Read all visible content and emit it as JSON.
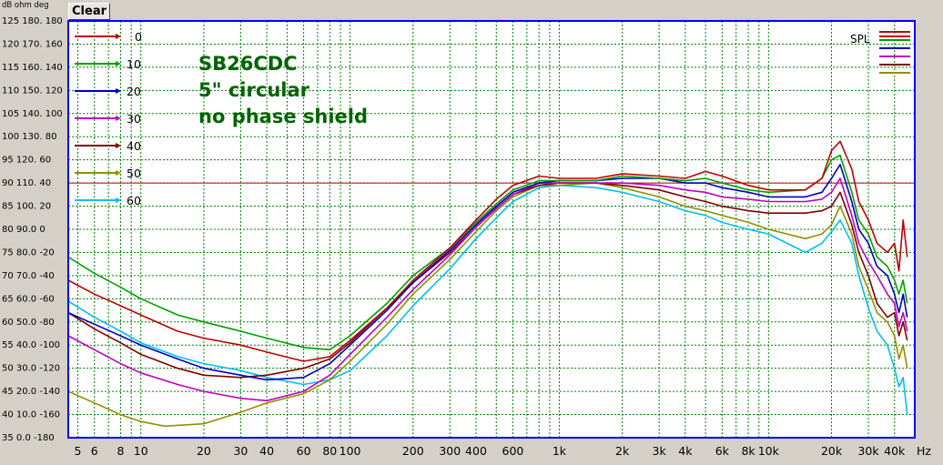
{
  "header": {
    "units": "dB  ohm deg",
    "clear_label": "Clear"
  },
  "colors": {
    "plot_bg": "#ffffff",
    "grid": "#008000",
    "frame": "#0000ff",
    "ref_line": "#c00000",
    "annotation": "#006400"
  },
  "chart_data": {
    "type": "line",
    "x_scale": "log",
    "xlim": [
      4.5,
      50000
    ],
    "ylim": [
      35,
      125
    ],
    "y_tick_labels": [
      "125 180. 180",
      "120 170. 160",
      "115 160. 140",
      "110 150. 120",
      "105 140. 100",
      "100 130. 80",
      "95  120. 60",
      "90  110. 40",
      "85  100. 20",
      "80  90.0  0",
      "75  80.0 -20",
      "70  70.0 -40",
      "65  60.0 -60",
      "60  50.0 -80",
      "55  40.0 -100",
      "50  30.0 -120",
      "45  20.0 -140",
      "40  10.0 -160",
      "35  0.0  -180"
    ],
    "x_ticks": [
      {
        "v": 5,
        "label": "5"
      },
      {
        "v": 6,
        "label": "6"
      },
      {
        "v": 8,
        "label": "8"
      },
      {
        "v": 10,
        "label": "10"
      },
      {
        "v": 20,
        "label": "20"
      },
      {
        "v": 30,
        "label": "30"
      },
      {
        "v": 40,
        "label": "40"
      },
      {
        "v": 60,
        "label": "60"
      },
      {
        "v": 80,
        "label": "80"
      },
      {
        "v": 100,
        "label": "100"
      },
      {
        "v": 200,
        "label": "200"
      },
      {
        "v": 300,
        "label": "300"
      },
      {
        "v": 400,
        "label": "400"
      },
      {
        "v": 600,
        "label": "600"
      },
      {
        "v": 1000,
        "label": "1k"
      },
      {
        "v": 2000,
        "label": "2k"
      },
      {
        "v": 3000,
        "label": "3k"
      },
      {
        "v": 4000,
        "label": "4k"
      },
      {
        "v": 6000,
        "label": "6k"
      },
      {
        "v": 8000,
        "label": "8k"
      },
      {
        "v": 10000,
        "label": "10k"
      },
      {
        "v": 20000,
        "label": "20k"
      },
      {
        "v": 30000,
        "label": "30k"
      },
      {
        "v": 40000,
        "label": "40k"
      }
    ],
    "x_unit": "Hz",
    "reference_line_y": 90,
    "annotation": [
      "SB26CDC",
      "5\" circular",
      "no phase shield"
    ],
    "right_legend_label": "SPL",
    "legend_placement": "top-left",
    "grid": true,
    "series": [
      {
        "name": "0",
        "color": "#c00000",
        "points": [
          [
            4.5,
            69
          ],
          [
            6,
            66
          ],
          [
            8,
            63.5
          ],
          [
            10,
            61.5
          ],
          [
            15,
            58
          ],
          [
            20,
            56.5
          ],
          [
            30,
            55
          ],
          [
            40,
            53.5
          ],
          [
            60,
            51.5
          ],
          [
            80,
            52.5
          ],
          [
            100,
            56
          ],
          [
            150,
            63
          ],
          [
            200,
            69
          ],
          [
            300,
            76
          ],
          [
            400,
            82
          ],
          [
            500,
            86.5
          ],
          [
            600,
            89.5
          ],
          [
            800,
            91.5
          ],
          [
            1000,
            91
          ],
          [
            1500,
            91
          ],
          [
            2000,
            92
          ],
          [
            3000,
            91.5
          ],
          [
            4000,
            91
          ],
          [
            5000,
            92.5
          ],
          [
            6000,
            91.5
          ],
          [
            8000,
            89.5
          ],
          [
            10000,
            88.5
          ],
          [
            15000,
            88.5
          ],
          [
            18000,
            91
          ],
          [
            20000,
            97
          ],
          [
            22000,
            99
          ],
          [
            25000,
            93
          ],
          [
            27000,
            86
          ],
          [
            30000,
            82
          ],
          [
            33000,
            77
          ],
          [
            37000,
            75
          ],
          [
            40000,
            77
          ],
          [
            42000,
            71
          ],
          [
            44000,
            82
          ],
          [
            46000,
            74
          ]
        ]
      },
      {
        "name": "10",
        "color": "#00a000",
        "points": [
          [
            4.5,
            74
          ],
          [
            6,
            70.5
          ],
          [
            8,
            67.5
          ],
          [
            10,
            65
          ],
          [
            15,
            61.5
          ],
          [
            20,
            60
          ],
          [
            30,
            58
          ],
          [
            40,
            56.5
          ],
          [
            60,
            54.5
          ],
          [
            80,
            54
          ],
          [
            100,
            57
          ],
          [
            150,
            64
          ],
          [
            200,
            70
          ],
          [
            300,
            76
          ],
          [
            400,
            81.5
          ],
          [
            500,
            85.5
          ],
          [
            600,
            88.5
          ],
          [
            800,
            90.5
          ],
          [
            1000,
            90.5
          ],
          [
            1500,
            90.5
          ],
          [
            2000,
            91.5
          ],
          [
            3000,
            91
          ],
          [
            4000,
            90.5
          ],
          [
            5000,
            91
          ],
          [
            6000,
            90
          ],
          [
            8000,
            88.5
          ],
          [
            10000,
            88
          ],
          [
            15000,
            88.5
          ],
          [
            18000,
            91
          ],
          [
            20000,
            95
          ],
          [
            22000,
            96
          ],
          [
            25000,
            88
          ],
          [
            27000,
            82
          ],
          [
            30000,
            79
          ],
          [
            33000,
            74
          ],
          [
            37000,
            72
          ],
          [
            40000,
            69
          ],
          [
            42000,
            66
          ],
          [
            44000,
            69
          ],
          [
            46000,
            64
          ]
        ]
      },
      {
        "name": "20",
        "color": "#0000c0",
        "points": [
          [
            4.5,
            62
          ],
          [
            6,
            59.5
          ],
          [
            8,
            57
          ],
          [
            10,
            55
          ],
          [
            15,
            52
          ],
          [
            20,
            50
          ],
          [
            30,
            48.5
          ],
          [
            40,
            47.5
          ],
          [
            60,
            48
          ],
          [
            80,
            51
          ],
          [
            100,
            55
          ],
          [
            150,
            62.5
          ],
          [
            200,
            68.5
          ],
          [
            300,
            75.5
          ],
          [
            400,
            81
          ],
          [
            500,
            85
          ],
          [
            600,
            88
          ],
          [
            800,
            90
          ],
          [
            1000,
            90.5
          ],
          [
            1500,
            90.5
          ],
          [
            2000,
            91
          ],
          [
            3000,
            91
          ],
          [
            4000,
            90
          ],
          [
            5000,
            90
          ],
          [
            6000,
            89
          ],
          [
            8000,
            88
          ],
          [
            10000,
            87
          ],
          [
            15000,
            87
          ],
          [
            18000,
            88
          ],
          [
            20000,
            91
          ],
          [
            22000,
            94
          ],
          [
            25000,
            86
          ],
          [
            27000,
            80
          ],
          [
            30000,
            77
          ],
          [
            33000,
            72
          ],
          [
            37000,
            70
          ],
          [
            40000,
            66
          ],
          [
            42000,
            62
          ],
          [
            44000,
            66
          ],
          [
            46000,
            61
          ]
        ]
      },
      {
        "name": "30",
        "color": "#c000c0",
        "points": [
          [
            4.5,
            57
          ],
          [
            6,
            54
          ],
          [
            8,
            51
          ],
          [
            10,
            49
          ],
          [
            15,
            46.5
          ],
          [
            20,
            45
          ],
          [
            30,
            43.5
          ],
          [
            40,
            43
          ],
          [
            60,
            45
          ],
          [
            80,
            48.5
          ],
          [
            100,
            53
          ],
          [
            150,
            61
          ],
          [
            200,
            67
          ],
          [
            300,
            74.5
          ],
          [
            400,
            80.5
          ],
          [
            500,
            84.5
          ],
          [
            600,
            87.5
          ],
          [
            800,
            90
          ],
          [
            1000,
            90
          ],
          [
            1500,
            90
          ],
          [
            2000,
            90
          ],
          [
            3000,
            89.5
          ],
          [
            4000,
            88.5
          ],
          [
            5000,
            88
          ],
          [
            6000,
            87
          ],
          [
            8000,
            86.5
          ],
          [
            10000,
            86
          ],
          [
            15000,
            86
          ],
          [
            18000,
            86.5
          ],
          [
            20000,
            88
          ],
          [
            22000,
            91
          ],
          [
            25000,
            83
          ],
          [
            27000,
            77
          ],
          [
            30000,
            73
          ],
          [
            33000,
            70
          ],
          [
            37000,
            66
          ],
          [
            40000,
            64
          ],
          [
            42000,
            59
          ],
          [
            44000,
            62
          ],
          [
            46000,
            58
          ]
        ]
      },
      {
        "name": "40",
        "color": "#800000",
        "points": [
          [
            4.5,
            62
          ],
          [
            6,
            58.5
          ],
          [
            8,
            55.5
          ],
          [
            10,
            53
          ],
          [
            15,
            50
          ],
          [
            20,
            48.5
          ],
          [
            30,
            48
          ],
          [
            40,
            48.5
          ],
          [
            60,
            50
          ],
          [
            80,
            52
          ],
          [
            100,
            55.5
          ],
          [
            150,
            63
          ],
          [
            200,
            68.5
          ],
          [
            300,
            75
          ],
          [
            400,
            80.5
          ],
          [
            500,
            84.5
          ],
          [
            600,
            87.5
          ],
          [
            800,
            89.5
          ],
          [
            1000,
            90
          ],
          [
            1500,
            90
          ],
          [
            2000,
            89.5
          ],
          [
            3000,
            88.5
          ],
          [
            4000,
            87
          ],
          [
            5000,
            86
          ],
          [
            6000,
            85
          ],
          [
            8000,
            84
          ],
          [
            10000,
            83.5
          ],
          [
            15000,
            83.5
          ],
          [
            18000,
            84
          ],
          [
            20000,
            85
          ],
          [
            22000,
            88
          ],
          [
            25000,
            81
          ],
          [
            27000,
            75
          ],
          [
            30000,
            70
          ],
          [
            33000,
            64
          ],
          [
            37000,
            61
          ],
          [
            40000,
            62
          ],
          [
            42000,
            57
          ],
          [
            44000,
            60
          ],
          [
            46000,
            56
          ]
        ]
      },
      {
        "name": "50",
        "color": "#909000",
        "points": [
          [
            4.5,
            45
          ],
          [
            6,
            42.5
          ],
          [
            8,
            40
          ],
          [
            10,
            38.5
          ],
          [
            13,
            37.5
          ],
          [
            20,
            38
          ],
          [
            30,
            40.5
          ],
          [
            40,
            42.5
          ],
          [
            60,
            44.5
          ],
          [
            80,
            47.5
          ],
          [
            100,
            51.5
          ],
          [
            150,
            59.5
          ],
          [
            200,
            66
          ],
          [
            300,
            73.5
          ],
          [
            400,
            79.5
          ],
          [
            500,
            84
          ],
          [
            600,
            87
          ],
          [
            800,
            89.5
          ],
          [
            1000,
            89.5
          ],
          [
            1500,
            90
          ],
          [
            2000,
            89
          ],
          [
            3000,
            87
          ],
          [
            4000,
            85
          ],
          [
            5000,
            84
          ],
          [
            6000,
            83
          ],
          [
            8000,
            81.5
          ],
          [
            10000,
            80
          ],
          [
            15000,
            78
          ],
          [
            18000,
            79
          ],
          [
            20000,
            81
          ],
          [
            22000,
            85
          ],
          [
            25000,
            79
          ],
          [
            27000,
            72
          ],
          [
            30000,
            67
          ],
          [
            33000,
            62
          ],
          [
            37000,
            60
          ],
          [
            40000,
            57
          ],
          [
            42000,
            52
          ],
          [
            44000,
            55
          ],
          [
            46000,
            50
          ]
        ]
      },
      {
        "name": "60",
        "color": "#00c0f0",
        "points": [
          [
            4.5,
            64.5
          ],
          [
            6,
            61
          ],
          [
            8,
            58
          ],
          [
            10,
            55.5
          ],
          [
            15,
            52.5
          ],
          [
            20,
            51
          ],
          [
            30,
            49.5
          ],
          [
            40,
            48
          ],
          [
            60,
            46.5
          ],
          [
            80,
            47.5
          ],
          [
            100,
            49.5
          ],
          [
            150,
            57
          ],
          [
            200,
            63.5
          ],
          [
            300,
            71.5
          ],
          [
            400,
            78
          ],
          [
            500,
            82.5
          ],
          [
            600,
            86
          ],
          [
            800,
            89
          ],
          [
            1000,
            89.5
          ],
          [
            1500,
            89
          ],
          [
            2000,
            88
          ],
          [
            3000,
            86
          ],
          [
            4000,
            84
          ],
          [
            5000,
            83
          ],
          [
            6000,
            81.5
          ],
          [
            8000,
            80
          ],
          [
            10000,
            79
          ],
          [
            15000,
            75
          ],
          [
            18000,
            77
          ],
          [
            20000,
            79.5
          ],
          [
            22000,
            82
          ],
          [
            25000,
            77
          ],
          [
            27000,
            70
          ],
          [
            30000,
            63
          ],
          [
            33000,
            58
          ],
          [
            37000,
            55
          ],
          [
            40000,
            50
          ],
          [
            42000,
            46
          ],
          [
            44000,
            48
          ],
          [
            46000,
            40
          ]
        ]
      }
    ]
  }
}
